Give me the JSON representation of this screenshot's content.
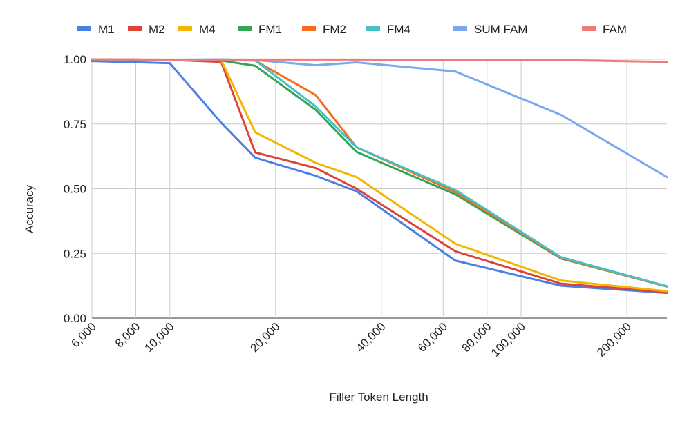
{
  "chart_data": {
    "type": "line",
    "x_scale": "log",
    "x": [
      6000,
      10000,
      14000,
      17500,
      26000,
      34000,
      65000,
      130000,
      260000
    ],
    "xlabel": "Filler Token Length",
    "ylabel": "Accuracy",
    "xlim": [
      6000,
      260000
    ],
    "ylim": [
      0,
      1
    ],
    "x_ticks": [
      6000,
      8000,
      10000,
      20000,
      40000,
      60000,
      80000,
      100000,
      200000
    ],
    "x_tick_labels": [
      "6,000",
      "8,000",
      "10,000",
      "20,000",
      "40,000",
      "60,000",
      "80,000",
      "100,000",
      "200,000"
    ],
    "y_ticks": [
      0,
      0.25,
      0.5,
      0.75,
      1.0
    ],
    "y_tick_labels": [
      "0.00",
      "0.25",
      "0.50",
      "0.75",
      "1.00"
    ],
    "grid": true,
    "legend_position": "top",
    "series": [
      {
        "name": "M1",
        "color": "#4a7fe3",
        "values": [
          0.993,
          0.985,
          0.755,
          0.62,
          0.55,
          0.49,
          0.222,
          0.125,
          0.097
        ]
      },
      {
        "name": "M2",
        "color": "#dc4437",
        "values": [
          1.0,
          0.998,
          0.99,
          0.64,
          0.58,
          0.5,
          0.258,
          0.133,
          0.1
        ]
      },
      {
        "name": "M4",
        "color": "#f4b400",
        "values": [
          1.0,
          0.998,
          0.997,
          0.718,
          0.6,
          0.545,
          0.287,
          0.145,
          0.104
        ]
      },
      {
        "name": "FM1",
        "color": "#34a456",
        "values": [
          1.0,
          0.998,
          0.995,
          0.975,
          0.805,
          0.642,
          0.478,
          0.23,
          0.122
        ]
      },
      {
        "name": "FM2",
        "color": "#f86b1b",
        "values": [
          1.0,
          0.998,
          0.997,
          0.995,
          0.862,
          0.66,
          0.487,
          0.232,
          0.122
        ]
      },
      {
        "name": "FM4",
        "color": "#45c0c6",
        "values": [
          1.0,
          0.998,
          0.997,
          0.996,
          0.818,
          0.66,
          0.495,
          0.235,
          0.123
        ]
      },
      {
        "name": "SUM FAM",
        "color": "#7aa8ef",
        "values": [
          1.0,
          0.998,
          1.0,
          0.997,
          0.977,
          0.988,
          0.953,
          0.785,
          0.545
        ]
      },
      {
        "name": "FAM",
        "color": "#ee7b75",
        "values": [
          1.0,
          0.999,
          0.999,
          0.999,
          0.999,
          0.999,
          0.998,
          0.997,
          0.99
        ]
      }
    ]
  }
}
